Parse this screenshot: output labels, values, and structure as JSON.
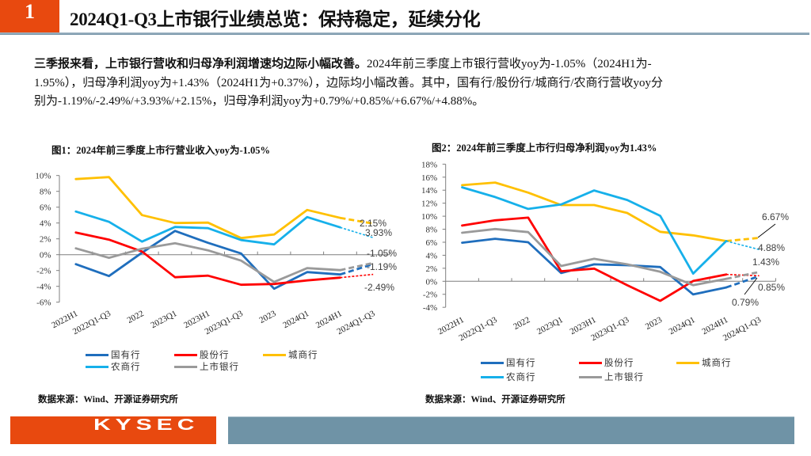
{
  "header": {
    "section_number": "1",
    "title": "2024Q1-Q3上市银行业绩总览：保持稳定，延续分化"
  },
  "summary": {
    "lead": "三季报来看，上市银行营收和归母净利润增速均边际小幅改善。",
    "lines": [
      "2024年前三季度上市银行营收yoy为-1.05%（2024H1为-",
      "1.95%），归母净利润yoy为+1.43%（2024H1为+0.37%），边际均小幅改善。其中，国有行/股份行/城商行/农商行营收yoy分",
      "别为-1.19%/-2.49%/+3.93%/+2.15%，归母净利润yoy为+0.79%/+0.85%/+6.67%/+4.88%。"
    ]
  },
  "colors": {
    "brand_orange": "#e8490f",
    "footer_bar": "#6f93a6"
  },
  "footer": {
    "logo_text": "KYSEC"
  },
  "chart_data": [
    {
      "type": "line",
      "title": "图1：2024年前三季度上市行营业收入yoy为-1.05%",
      "xlabel": "",
      "ylabel": "",
      "ylim": [
        -6,
        10
      ],
      "yticks": [
        10,
        8,
        6,
        4,
        2,
        0,
        -2,
        -4,
        -6
      ],
      "ytick_labels": [
        "10%",
        "8%",
        "6%",
        "4%",
        "2%",
        "0%",
        "-2%",
        "-4%",
        "-6%"
      ],
      "grid": false,
      "legend": "bottom",
      "last_segment_dashed": true,
      "categories": [
        "2022H1",
        "2022Q1-Q3",
        "2022",
        "2023Q1",
        "2023H1",
        "2023Q1-Q3",
        "2023",
        "2024Q1",
        "2024H1",
        "2024Q1-Q3"
      ],
      "series": [
        {
          "name": "国有行",
          "color": "#1f6ebd",
          "values": [
            -1.2,
            -2.7,
            0.25,
            3.0,
            1.5,
            0.15,
            -4.3,
            -2.2,
            -2.5,
            -1.19
          ],
          "end_label": "-1.19%"
        },
        {
          "name": "股份行",
          "color": "#ff0000",
          "values": [
            2.8,
            1.9,
            0.4,
            -2.85,
            -2.65,
            -3.8,
            -3.7,
            -3.25,
            -2.9,
            -2.49
          ],
          "end_label": "-2.49%"
        },
        {
          "name": "城商行",
          "color": "#ffc000",
          "values": [
            9.55,
            9.8,
            5.0,
            4.0,
            4.05,
            2.1,
            2.55,
            5.65,
            4.65,
            3.93
          ],
          "end_label": "3.93%"
        },
        {
          "name": "农商行",
          "color": "#16b0ea",
          "values": [
            5.45,
            4.15,
            1.65,
            3.5,
            3.35,
            1.85,
            1.3,
            4.75,
            3.45,
            2.15
          ],
          "end_label": "2.15%"
        },
        {
          "name": "上市银行",
          "color": "#9a9a9a",
          "values": [
            0.8,
            -0.4,
            0.75,
            1.45,
            0.55,
            -0.75,
            -3.45,
            -1.7,
            -1.95,
            -1.05
          ],
          "end_label": "-1.05%"
        }
      ],
      "source": "数据来源：Wind、开源证券研究所"
    },
    {
      "type": "line",
      "title": "图2：2024年前三季度上市行归母净利润yoy为1.43%",
      "xlabel": "",
      "ylabel": "",
      "ylim": [
        -4,
        18
      ],
      "yticks": [
        18,
        16,
        14,
        12,
        10,
        8,
        6,
        4,
        2,
        0,
        -2,
        -4
      ],
      "ytick_labels": [
        "18%",
        "16%",
        "14%",
        "12%",
        "10%",
        "8%",
        "6%",
        "4%",
        "2%",
        "0%",
        "-2%",
        "-4%"
      ],
      "grid": false,
      "legend": "bottom",
      "last_segment_dashed": true,
      "categories": [
        "2022H1",
        "2022Q1-Q3",
        "2022",
        "2023Q1",
        "2023H1",
        "2023Q1-Q3",
        "2023",
        "2024Q1",
        "2024H1",
        "2024Q1-Q3"
      ],
      "series": [
        {
          "name": "国有行",
          "color": "#1f6ebd",
          "values": [
            5.92,
            6.53,
            6.0,
            1.26,
            2.6,
            2.47,
            2.19,
            -2.02,
            -0.95,
            0.79
          ],
          "end_label": "0.79%"
        },
        {
          "name": "股份行",
          "color": "#ff0000",
          "values": [
            8.56,
            9.37,
            9.78,
            1.54,
            1.95,
            -0.6,
            -3.0,
            0.05,
            1.05,
            0.85
          ],
          "end_label": "0.85%"
        },
        {
          "name": "城商行",
          "color": "#ffc000",
          "values": [
            14.77,
            15.17,
            13.63,
            11.72,
            11.72,
            10.5,
            7.6,
            7.05,
            6.18,
            6.67
          ],
          "end_label": "6.67%"
        },
        {
          "name": "农商行",
          "color": "#16b0ea",
          "values": [
            14.44,
            12.94,
            11.12,
            11.8,
            13.95,
            12.49,
            10.06,
            1.18,
            6.18,
            4.88
          ],
          "end_label": "4.88%"
        },
        {
          "name": "上市银行",
          "color": "#9a9a9a",
          "values": [
            7.46,
            8.03,
            7.55,
            2.35,
            3.45,
            2.6,
            1.46,
            -0.6,
            0.37,
            1.43
          ],
          "end_label": "1.43%"
        }
      ],
      "source": "数据来源：Wind、开源证券研究所"
    }
  ]
}
